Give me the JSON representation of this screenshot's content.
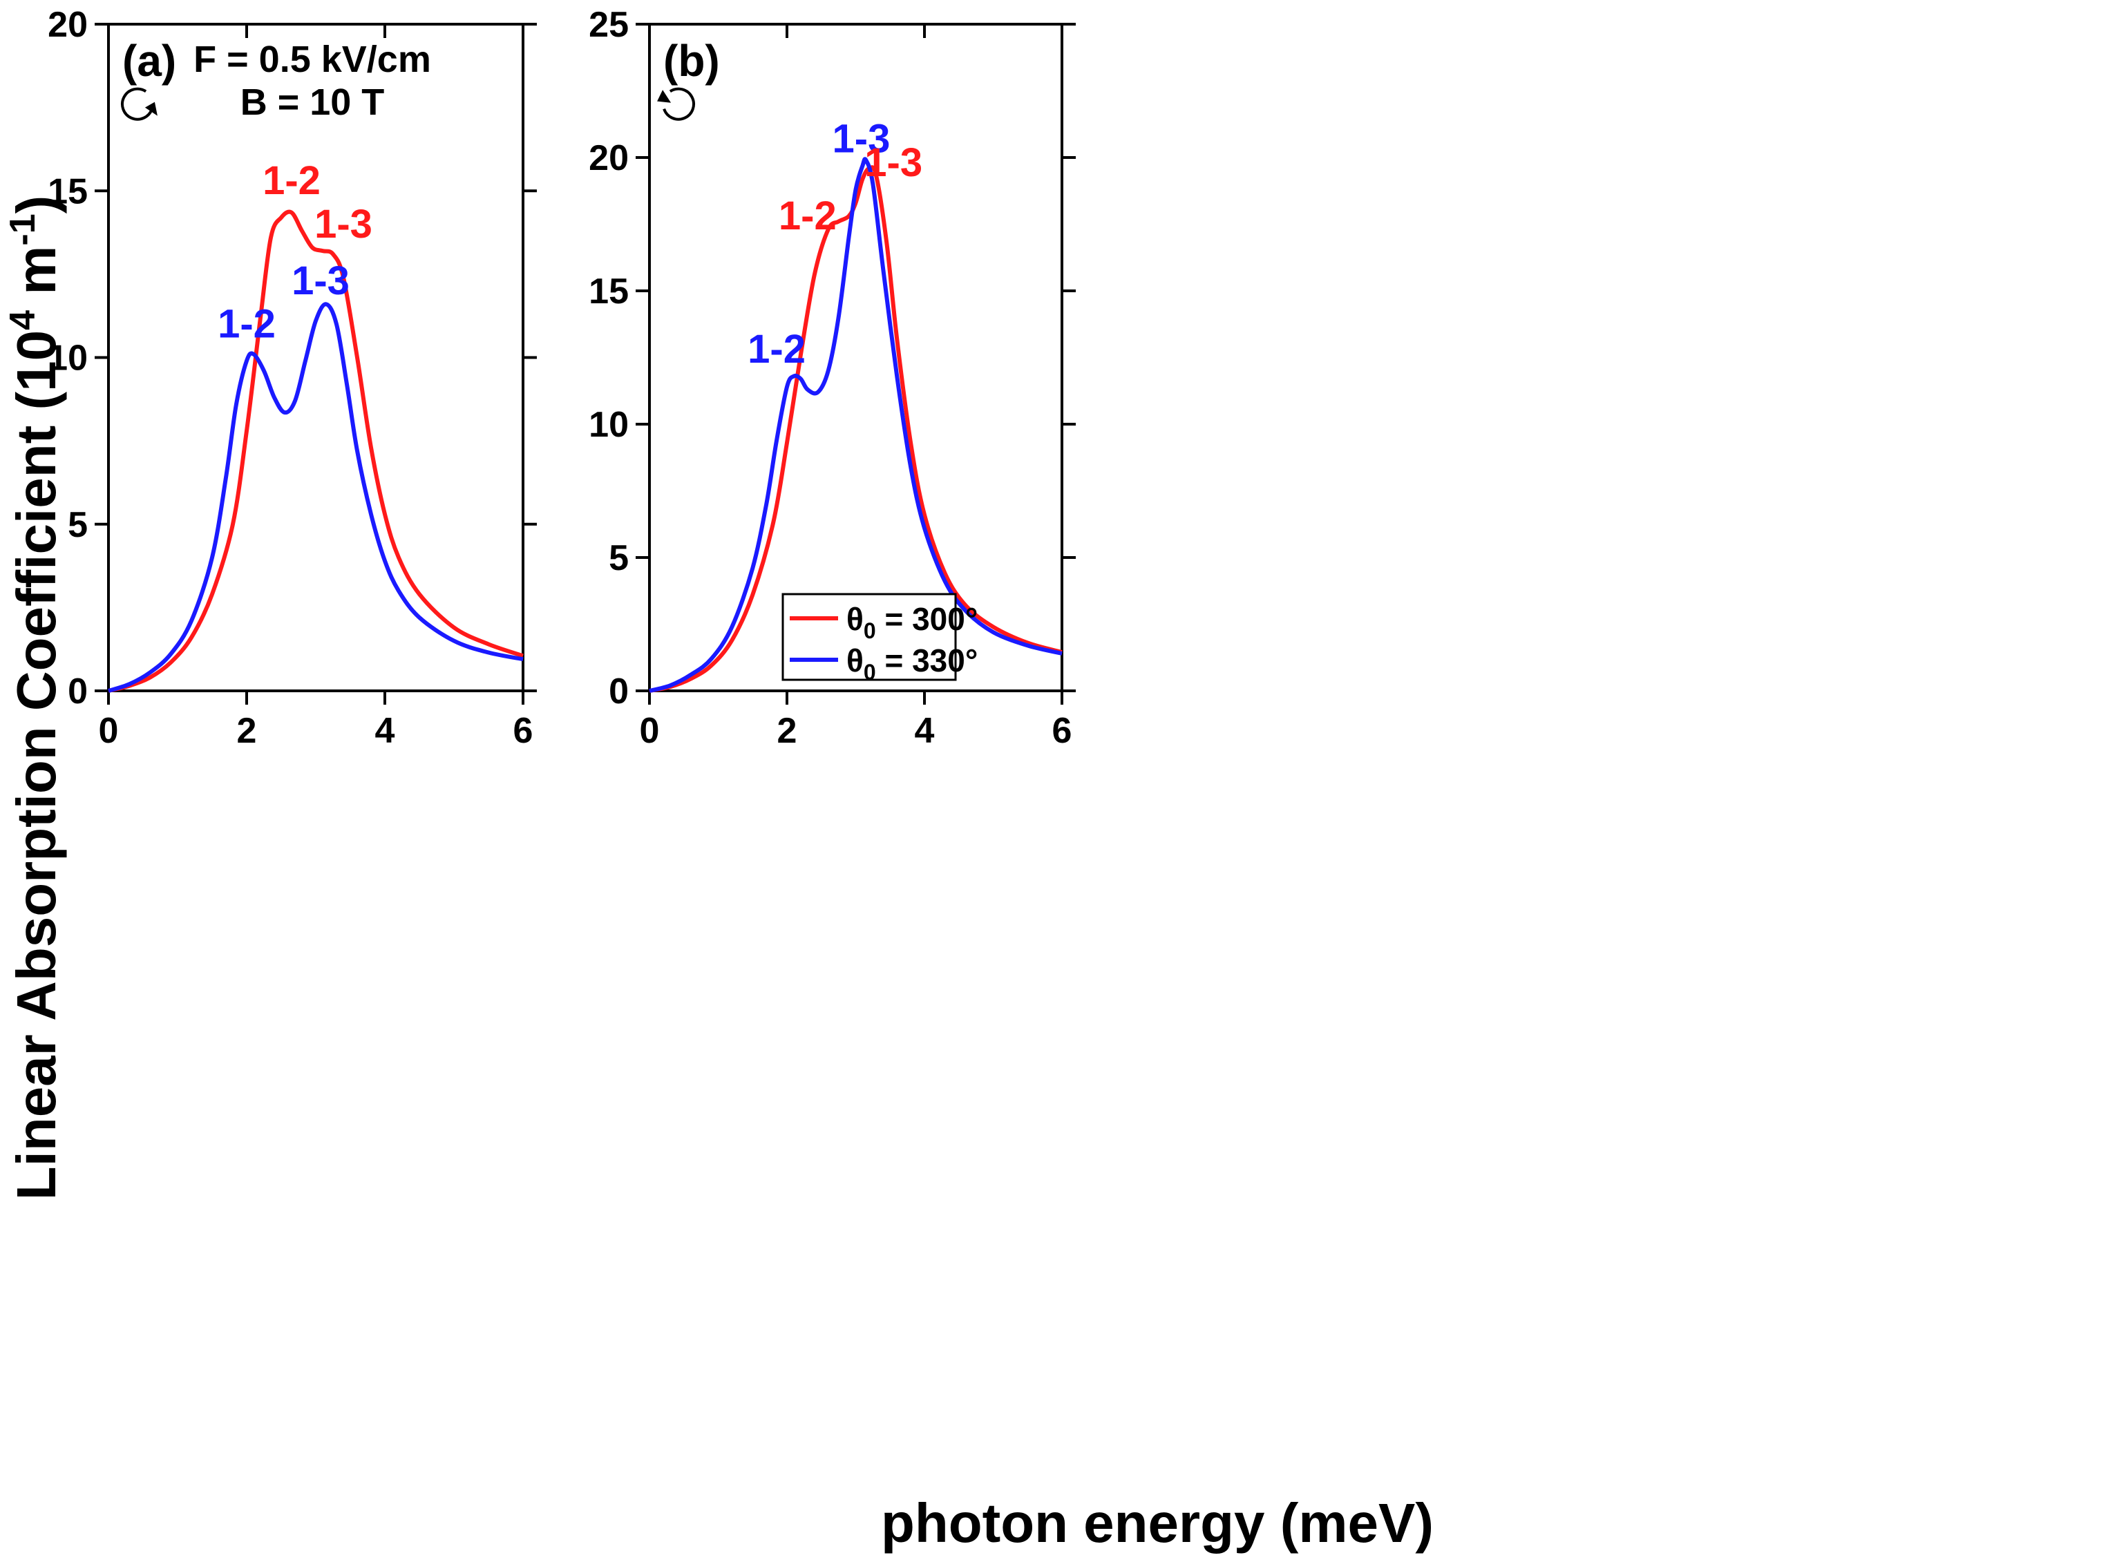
{
  "figure": {
    "xlabel": "photon energy (meV)",
    "ylabel_main": "Linear Absorption Coefficient (10",
    "ylabel_sup1": "4",
    "ylabel_mid": " m",
    "ylabel_sup2": "-1",
    "ylabel_end": ")"
  },
  "colors": {
    "red": "#ff1a1a",
    "blue": "#1a1aff",
    "axis": "#000000"
  },
  "chart_data": [
    {
      "type": "line",
      "panel_label": "(a)",
      "annotation_line1": "F = 0.5 kV/cm",
      "annotation_line2": "B = 10 T",
      "rotation_icon": "clockwise-circle-arrow",
      "xlim": [
        0,
        6
      ],
      "ylim": [
        0,
        20
      ],
      "xticks": [
        "0",
        "2",
        "4",
        "6"
      ],
      "yticks": [
        "0",
        "5",
        "10",
        "15",
        "20"
      ],
      "series": [
        {
          "name": "θ0 = 300°",
          "color": "red",
          "x": [
            0,
            0.3,
            0.6,
            0.9,
            1.2,
            1.5,
            1.8,
            2.0,
            2.2,
            2.35,
            2.5,
            2.65,
            2.8,
            2.95,
            3.1,
            3.25,
            3.4,
            3.6,
            3.8,
            4.0,
            4.2,
            4.5,
            5.0,
            5.5,
            6.0
          ],
          "y": [
            0,
            0.15,
            0.4,
            0.85,
            1.6,
            2.9,
            5.0,
            7.8,
            11.2,
            13.6,
            14.2,
            14.35,
            13.8,
            13.3,
            13.2,
            13.1,
            12.4,
            10.0,
            7.3,
            5.3,
            4.0,
            2.9,
            1.9,
            1.4,
            1.05
          ]
        },
        {
          "name": "θ0 = 330°",
          "color": "blue",
          "x": [
            0,
            0.3,
            0.6,
            0.9,
            1.2,
            1.5,
            1.7,
            1.85,
            2.0,
            2.1,
            2.25,
            2.4,
            2.55,
            2.7,
            2.85,
            3.0,
            3.15,
            3.3,
            3.45,
            3.6,
            3.8,
            4.0,
            4.2,
            4.5,
            5.0,
            5.5,
            6.0
          ],
          "y": [
            0,
            0.2,
            0.55,
            1.1,
            2.1,
            4.0,
            6.4,
            8.6,
            9.9,
            10.1,
            9.6,
            8.8,
            8.35,
            8.7,
            9.9,
            11.1,
            11.6,
            11.0,
            9.2,
            7.2,
            5.3,
            3.9,
            3.0,
            2.2,
            1.5,
            1.15,
            0.95
          ]
        }
      ],
      "labels": [
        {
          "text": "1-2",
          "color": "red",
          "x": 2.65,
          "y": 14.9
        },
        {
          "text": "1-3",
          "color": "red",
          "x": 3.4,
          "y": 13.6
        },
        {
          "text": "1-2",
          "color": "blue",
          "x": 2.0,
          "y": 10.6
        },
        {
          "text": "1-3",
          "color": "blue",
          "x": 3.07,
          "y": 11.9
        }
      ]
    },
    {
      "type": "line",
      "panel_label": "(b)",
      "rotation_icon": "counterclockwise-circle-arrow",
      "xlim": [
        0,
        6
      ],
      "ylim": [
        0,
        25
      ],
      "xticks": [
        "0",
        "2",
        "4",
        "6"
      ],
      "yticks": [
        "0",
        "5",
        "10",
        "15",
        "20",
        "25"
      ],
      "legend_position": "bottom-right",
      "series": [
        {
          "name": "θ0 = 300°",
          "color": "red",
          "x": [
            0,
            0.3,
            0.6,
            0.9,
            1.2,
            1.5,
            1.8,
            2.0,
            2.2,
            2.4,
            2.6,
            2.75,
            2.9,
            3.0,
            3.1,
            3.2,
            3.3,
            3.45,
            3.6,
            3.8,
            4.0,
            4.3,
            4.6,
            5.0,
            5.5,
            6.0
          ],
          "y": [
            0,
            0.15,
            0.45,
            0.95,
            1.9,
            3.6,
            6.3,
            9.3,
            12.6,
            15.6,
            17.3,
            17.6,
            17.8,
            18.3,
            19.2,
            19.6,
            19.3,
            16.8,
            13.2,
            9.3,
            6.6,
            4.4,
            3.2,
            2.4,
            1.8,
            1.45
          ]
        },
        {
          "name": "θ0 = 330°",
          "color": "blue",
          "x": [
            0,
            0.3,
            0.6,
            0.9,
            1.2,
            1.5,
            1.7,
            1.85,
            2.0,
            2.1,
            2.2,
            2.3,
            2.45,
            2.6,
            2.75,
            2.9,
            3.0,
            3.1,
            3.15,
            3.25,
            3.4,
            3.6,
            3.8,
            4.0,
            4.3,
            4.6,
            5.0,
            5.5,
            6.0
          ],
          "y": [
            0,
            0.2,
            0.6,
            1.2,
            2.4,
            4.6,
            7.0,
            9.4,
            11.4,
            11.8,
            11.7,
            11.3,
            11.2,
            12.0,
            14.0,
            17.0,
            18.8,
            19.7,
            19.9,
            19.0,
            15.8,
            11.8,
            8.4,
            6.1,
            4.1,
            3.0,
            2.2,
            1.7,
            1.4
          ]
        }
      ],
      "labels": [
        {
          "text": "1-3",
          "color": "blue",
          "x": 3.08,
          "y": 20.2
        },
        {
          "text": "1-3",
          "color": "red",
          "x": 3.55,
          "y": 19.3
        },
        {
          "text": "1-2",
          "color": "red",
          "x": 2.3,
          "y": 17.3
        },
        {
          "text": "1-2",
          "color": "blue",
          "x": 1.85,
          "y": 12.3
        }
      ],
      "legend": [
        {
          "prefix": "θ",
          "sub": "0",
          "suffix": " = 300°",
          "color": "red"
        },
        {
          "prefix": "θ",
          "sub": "0",
          "suffix": " = 330°",
          "color": "blue"
        }
      ]
    }
  ]
}
